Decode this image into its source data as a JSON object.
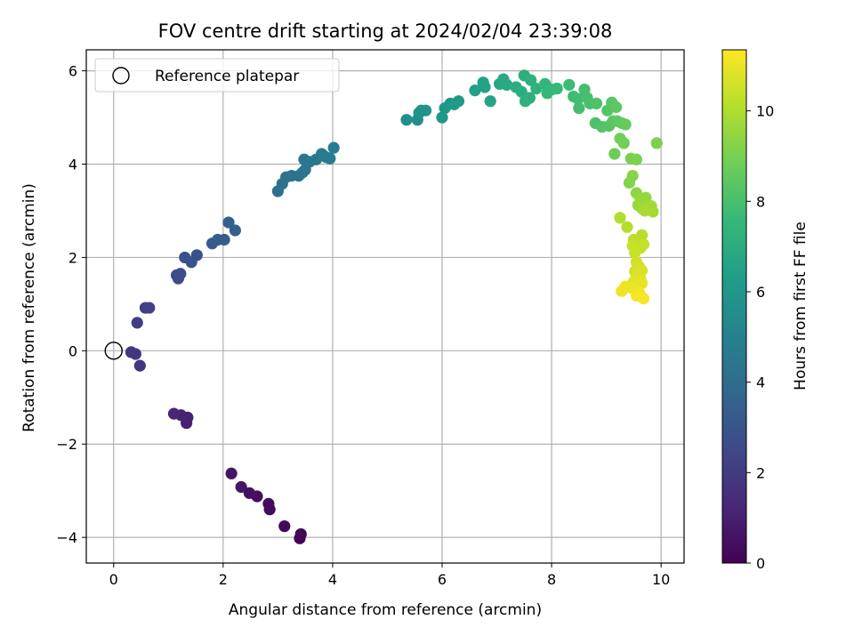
{
  "chart_data": {
    "type": "scatter",
    "title": "FOV centre drift starting at 2024/02/04 23:39:08",
    "xlabel": "Angular distance from reference (arcmin)",
    "ylabel": "Rotation from reference (arcmin)",
    "xlim": [
      -0.5,
      10.42
    ],
    "ylim": [
      -4.55,
      6.45
    ],
    "x_ticks": [
      0,
      2,
      4,
      6,
      8,
      10
    ],
    "y_ticks": [
      -4,
      -2,
      0,
      2,
      4,
      6
    ],
    "grid": true,
    "legend": {
      "placement": "top-left",
      "entries": [
        "Reference platepar"
      ]
    },
    "reference_point": {
      "x": 0,
      "y": 0,
      "marker": "open-circle",
      "edge_color": "#000000"
    },
    "colorbar": {
      "label": "Hours from first FF file",
      "range": [
        0,
        11.35
      ],
      "ticks": [
        0,
        2,
        4,
        6,
        8,
        10
      ],
      "colormap": "viridis",
      "colors": [
        "#440154",
        "#482878",
        "#3e4989",
        "#31688e",
        "#26828e",
        "#1f9e89",
        "#35b779",
        "#6ece58",
        "#b5de2b",
        "#fde725"
      ]
    },
    "points": [
      {
        "x": 3.4,
        "y": -4.02,
        "c": 0.05
      },
      {
        "x": 3.42,
        "y": -3.93,
        "c": 0.12
      },
      {
        "x": 3.12,
        "y": -3.76,
        "c": 0.2
      },
      {
        "x": 2.85,
        "y": -3.4,
        "c": 0.28
      },
      {
        "x": 2.83,
        "y": -3.28,
        "c": 0.35
      },
      {
        "x": 2.62,
        "y": -3.12,
        "c": 0.42
      },
      {
        "x": 2.48,
        "y": -3.05,
        "c": 0.5
      },
      {
        "x": 2.33,
        "y": -2.92,
        "c": 0.58
      },
      {
        "x": 2.15,
        "y": -2.63,
        "c": 0.65
      },
      {
        "x": 1.33,
        "y": -1.55,
        "c": 1.0
      },
      {
        "x": 1.35,
        "y": -1.43,
        "c": 1.05
      },
      {
        "x": 1.23,
        "y": -1.38,
        "c": 1.1
      },
      {
        "x": 1.1,
        "y": -1.35,
        "c": 1.15
      },
      {
        "x": 0.48,
        "y": -0.32,
        "c": 1.75
      },
      {
        "x": 0.4,
        "y": -0.07,
        "c": 1.8
      },
      {
        "x": 0.32,
        "y": -0.03,
        "c": 1.85
      },
      {
        "x": 0.43,
        "y": 0.6,
        "c": 2.05
      },
      {
        "x": 0.58,
        "y": 0.92,
        "c": 2.15
      },
      {
        "x": 0.65,
        "y": 0.92,
        "c": 2.2
      },
      {
        "x": 1.18,
        "y": 1.55,
        "c": 2.55
      },
      {
        "x": 1.15,
        "y": 1.62,
        "c": 2.6
      },
      {
        "x": 1.22,
        "y": 1.65,
        "c": 2.65
      },
      {
        "x": 1.3,
        "y": 2.0,
        "c": 2.8
      },
      {
        "x": 1.42,
        "y": 1.9,
        "c": 2.85
      },
      {
        "x": 1.52,
        "y": 2.05,
        "c": 2.9
      },
      {
        "x": 1.8,
        "y": 2.3,
        "c": 3.2
      },
      {
        "x": 1.9,
        "y": 2.38,
        "c": 3.25
      },
      {
        "x": 2.02,
        "y": 2.38,
        "c": 3.3
      },
      {
        "x": 2.1,
        "y": 2.75,
        "c": 3.45
      },
      {
        "x": 2.22,
        "y": 2.58,
        "c": 3.5
      },
      {
        "x": 3.0,
        "y": 3.42,
        "c": 4.1
      },
      {
        "x": 3.08,
        "y": 3.58,
        "c": 4.15
      },
      {
        "x": 3.15,
        "y": 3.72,
        "c": 4.2
      },
      {
        "x": 3.25,
        "y": 3.75,
        "c": 4.25
      },
      {
        "x": 3.38,
        "y": 3.75,
        "c": 4.3
      },
      {
        "x": 3.45,
        "y": 3.82,
        "c": 4.35
      },
      {
        "x": 3.5,
        "y": 3.88,
        "c": 4.4
      },
      {
        "x": 3.48,
        "y": 4.1,
        "c": 4.45
      },
      {
        "x": 3.58,
        "y": 4.05,
        "c": 4.5
      },
      {
        "x": 3.7,
        "y": 4.1,
        "c": 4.55
      },
      {
        "x": 3.8,
        "y": 4.22,
        "c": 4.6
      },
      {
        "x": 3.88,
        "y": 4.15,
        "c": 4.65
      },
      {
        "x": 3.95,
        "y": 4.12,
        "c": 4.7
      },
      {
        "x": 4.02,
        "y": 4.35,
        "c": 4.75
      },
      {
        "x": 5.35,
        "y": 4.95,
        "c": 5.6
      },
      {
        "x": 5.55,
        "y": 4.95,
        "c": 5.65
      },
      {
        "x": 5.58,
        "y": 5.1,
        "c": 5.7
      },
      {
        "x": 5.62,
        "y": 5.15,
        "c": 5.72
      },
      {
        "x": 5.7,
        "y": 5.15,
        "c": 5.75
      },
      {
        "x": 6.0,
        "y": 5.0,
        "c": 5.95
      },
      {
        "x": 6.05,
        "y": 5.2,
        "c": 6.0
      },
      {
        "x": 6.15,
        "y": 5.3,
        "c": 6.05
      },
      {
        "x": 6.22,
        "y": 5.28,
        "c": 6.1
      },
      {
        "x": 6.3,
        "y": 5.35,
        "c": 6.15
      },
      {
        "x": 6.6,
        "y": 5.58,
        "c": 6.4
      },
      {
        "x": 6.75,
        "y": 5.75,
        "c": 6.5
      },
      {
        "x": 6.78,
        "y": 5.65,
        "c": 6.55
      },
      {
        "x": 6.88,
        "y": 5.35,
        "c": 6.6
      },
      {
        "x": 7.05,
        "y": 5.72,
        "c": 6.75
      },
      {
        "x": 7.12,
        "y": 5.82,
        "c": 6.8
      },
      {
        "x": 7.18,
        "y": 5.7,
        "c": 6.85
      },
      {
        "x": 7.35,
        "y": 5.65,
        "c": 7.0
      },
      {
        "x": 7.45,
        "y": 5.55,
        "c": 7.05
      },
      {
        "x": 7.5,
        "y": 5.9,
        "c": 7.1
      },
      {
        "x": 7.52,
        "y": 5.35,
        "c": 7.15
      },
      {
        "x": 7.6,
        "y": 5.42,
        "c": 7.2
      },
      {
        "x": 7.62,
        "y": 5.8,
        "c": 7.25
      },
      {
        "x": 7.72,
        "y": 5.62,
        "c": 7.3
      },
      {
        "x": 7.88,
        "y": 5.72,
        "c": 7.45
      },
      {
        "x": 7.92,
        "y": 5.52,
        "c": 7.5
      },
      {
        "x": 8.0,
        "y": 5.6,
        "c": 7.55
      },
      {
        "x": 8.1,
        "y": 5.62,
        "c": 7.6
      },
      {
        "x": 8.32,
        "y": 5.7,
        "c": 7.75
      },
      {
        "x": 8.4,
        "y": 5.45,
        "c": 7.8
      },
      {
        "x": 8.48,
        "y": 5.4,
        "c": 7.85
      },
      {
        "x": 8.5,
        "y": 5.2,
        "c": 7.9
      },
      {
        "x": 8.6,
        "y": 5.6,
        "c": 7.95
      },
      {
        "x": 8.65,
        "y": 5.42,
        "c": 8.0
      },
      {
        "x": 8.7,
        "y": 5.3,
        "c": 8.05
      },
      {
        "x": 8.8,
        "y": 4.88,
        "c": 8.1
      },
      {
        "x": 8.82,
        "y": 5.3,
        "c": 8.15
      },
      {
        "x": 8.92,
        "y": 4.8,
        "c": 8.2
      },
      {
        "x": 9.02,
        "y": 5.15,
        "c": 8.25
      },
      {
        "x": 9.05,
        "y": 4.82,
        "c": 8.3
      },
      {
        "x": 9.1,
        "y": 5.32,
        "c": 8.35
      },
      {
        "x": 9.12,
        "y": 4.92,
        "c": 8.4
      },
      {
        "x": 9.18,
        "y": 5.22,
        "c": 8.45
      },
      {
        "x": 9.2,
        "y": 4.92,
        "c": 8.5
      },
      {
        "x": 9.28,
        "y": 4.88,
        "c": 8.55
      },
      {
        "x": 9.35,
        "y": 4.85,
        "c": 8.6
      },
      {
        "x": 9.15,
        "y": 4.22,
        "c": 8.8
      },
      {
        "x": 9.25,
        "y": 4.55,
        "c": 8.85
      },
      {
        "x": 9.32,
        "y": 4.45,
        "c": 8.9
      },
      {
        "x": 9.45,
        "y": 4.12,
        "c": 9.0
      },
      {
        "x": 9.55,
        "y": 4.1,
        "c": 9.05
      },
      {
        "x": 9.92,
        "y": 4.45,
        "c": 9.1
      },
      {
        "x": 9.42,
        "y": 3.6,
        "c": 9.2
      },
      {
        "x": 9.48,
        "y": 3.75,
        "c": 9.25
      },
      {
        "x": 9.55,
        "y": 3.38,
        "c": 9.4
      },
      {
        "x": 9.62,
        "y": 3.25,
        "c": 9.5
      },
      {
        "x": 9.72,
        "y": 3.28,
        "c": 9.55
      },
      {
        "x": 9.58,
        "y": 3.12,
        "c": 9.6
      },
      {
        "x": 9.65,
        "y": 3.05,
        "c": 9.65
      },
      {
        "x": 9.75,
        "y": 3.1,
        "c": 9.7
      },
      {
        "x": 9.82,
        "y": 3.1,
        "c": 9.75
      },
      {
        "x": 9.85,
        "y": 2.98,
        "c": 9.8
      },
      {
        "x": 9.7,
        "y": 3.0,
        "c": 9.85
      },
      {
        "x": 9.25,
        "y": 2.85,
        "c": 10.0
      },
      {
        "x": 9.38,
        "y": 2.65,
        "c": 10.05
      },
      {
        "x": 9.65,
        "y": 2.48,
        "c": 10.15
      },
      {
        "x": 9.5,
        "y": 2.38,
        "c": 10.2
      },
      {
        "x": 9.55,
        "y": 2.25,
        "c": 10.25
      },
      {
        "x": 9.62,
        "y": 2.2,
        "c": 10.3
      },
      {
        "x": 9.68,
        "y": 2.28,
        "c": 10.35
      },
      {
        "x": 9.48,
        "y": 2.25,
        "c": 10.4
      },
      {
        "x": 9.52,
        "y": 2.1,
        "c": 10.45
      },
      {
        "x": 9.55,
        "y": 1.9,
        "c": 10.55
      },
      {
        "x": 9.6,
        "y": 1.8,
        "c": 10.6
      },
      {
        "x": 9.52,
        "y": 1.7,
        "c": 10.65
      },
      {
        "x": 9.65,
        "y": 1.72,
        "c": 10.7
      },
      {
        "x": 9.55,
        "y": 1.6,
        "c": 10.75
      },
      {
        "x": 9.62,
        "y": 1.55,
        "c": 10.8
      },
      {
        "x": 9.5,
        "y": 1.48,
        "c": 10.85
      },
      {
        "x": 9.58,
        "y": 1.4,
        "c": 10.9
      },
      {
        "x": 9.65,
        "y": 1.45,
        "c": 10.95
      },
      {
        "x": 9.45,
        "y": 1.35,
        "c": 11.0
      },
      {
        "x": 9.35,
        "y": 1.38,
        "c": 11.05
      },
      {
        "x": 9.28,
        "y": 1.28,
        "c": 11.1
      },
      {
        "x": 9.6,
        "y": 1.25,
        "c": 11.15
      },
      {
        "x": 9.55,
        "y": 1.18,
        "c": 11.2
      },
      {
        "x": 9.68,
        "y": 1.12,
        "c": 11.25
      }
    ]
  }
}
